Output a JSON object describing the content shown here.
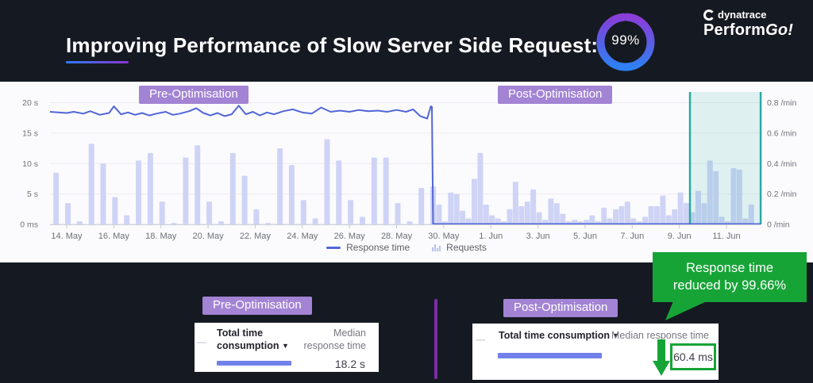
{
  "header": {
    "title": "Improving Performance of Slow Server Side Request:",
    "gauge_percent": "99%",
    "brand": {
      "company": "dynatrace",
      "event": "Perform",
      "event_suffix": "Go!"
    }
  },
  "chart": {
    "pre_label": "Pre-Optimisation",
    "post_label": "Post-Optimisation",
    "legend": [
      {
        "label": "Response time"
      },
      {
        "label": "Requests"
      }
    ]
  },
  "chart_data": {
    "type": "line+bar",
    "x_axis": {
      "tick_labels": [
        "14. May",
        "16. May",
        "18. May",
        "20. May",
        "22. May",
        "24. May",
        "26. May",
        "28. May",
        "30. May",
        "1. Jun",
        "3. Jun",
        "5. Jun",
        "7. Jun",
        "9. Jun",
        "11. Jun"
      ],
      "tick_step_days": 2,
      "domain_days": [
        -0.71,
        29.45
      ]
    },
    "y_left": {
      "tick_labels_bottom_up": [
        "0 ms",
        "5 s",
        "10 s",
        "15 s",
        "20 s"
      ],
      "tick_values_seconds": [
        0,
        5,
        10,
        15,
        20
      ],
      "range_seconds": [
        0,
        20
      ]
    },
    "y_right": {
      "tick_labels_bottom_up": [
        "0 /min",
        "0.2 /min",
        "0.4 /min",
        "0.6 /min",
        "0.8 /min"
      ],
      "range_per_min": [
        0,
        0.8
      ]
    },
    "grid": true,
    "legend_position": "bottom-center",
    "selection_region_days": [
      26.45,
      29.45
    ],
    "series": [
      {
        "name": "Response time",
        "type": "line",
        "color": "#5166d8",
        "points_day_seconds": [
          [
            -0.71,
            18.5
          ],
          [
            0,
            18.3
          ],
          [
            0.3,
            18.5
          ],
          [
            0.7,
            18.2
          ],
          [
            1,
            18.6
          ],
          [
            1.4,
            18.0
          ],
          [
            1.8,
            18.3
          ],
          [
            2,
            19.4
          ],
          [
            2.3,
            18.1
          ],
          [
            2.6,
            18.4
          ],
          [
            2.9,
            18.0
          ],
          [
            3.2,
            18.3
          ],
          [
            3.5,
            17.9
          ],
          [
            3.8,
            18.2
          ],
          [
            4.2,
            18.5
          ],
          [
            4.5,
            18.0
          ],
          [
            4.8,
            18.2
          ],
          [
            5.2,
            18.6
          ],
          [
            5.5,
            19.1
          ],
          [
            5.8,
            18.3
          ],
          [
            6.1,
            17.9
          ],
          [
            6.4,
            18.3
          ],
          [
            6.7,
            17.8
          ],
          [
            7,
            18.1
          ],
          [
            7.3,
            19.5
          ],
          [
            7.6,
            18.1
          ],
          [
            7.9,
            18.5
          ],
          [
            8.2,
            17.9
          ],
          [
            8.5,
            18.4
          ],
          [
            8.8,
            18.1
          ],
          [
            9.2,
            18.6
          ],
          [
            9.6,
            18.9
          ],
          [
            10,
            18.4
          ],
          [
            10.4,
            18.2
          ],
          [
            10.8,
            19.2
          ],
          [
            11.2,
            18.5
          ],
          [
            11.6,
            18.7
          ],
          [
            12,
            18.5
          ],
          [
            12.4,
            18.8
          ],
          [
            12.8,
            18.6
          ],
          [
            13.2,
            18.7
          ],
          [
            13.6,
            18.5
          ],
          [
            14,
            18.8
          ],
          [
            14.4,
            18.5
          ],
          [
            14.7,
            18.9
          ],
          [
            15,
            17.8
          ],
          [
            15.3,
            17.4
          ],
          [
            15.45,
            19.4
          ],
          [
            15.5,
            19.3
          ],
          [
            15.55,
            0.06
          ],
          [
            29.45,
            0.06
          ]
        ]
      },
      {
        "name": "Requests",
        "type": "bar",
        "color": "#cfd4f6",
        "segments": [
          {
            "start_day": -0.45,
            "step_days": 0.5,
            "values_per_min": [
              0.34,
              0.14,
              0.02,
              0.53,
              0.4,
              0.18,
              0.06,
              0.42,
              0.47,
              0.15,
              0.01,
              0.44,
              0.52,
              0.15,
              0.02,
              0.47,
              0.32,
              0.1,
              0.01,
              0.5,
              0.39,
              0.16,
              0.04,
              0.56,
              0.42,
              0.16,
              0.05,
              0.44,
              0.44,
              0.14,
              0.02,
              0.24
            ]
          },
          {
            "start_day": 15.55,
            "step_days": 0.25,
            "values_per_min": [
              0.25,
              0.13,
              0.02,
              0.21,
              0.2,
              0.09,
              0.04,
              0.3,
              0.47,
              0.13,
              0.06,
              0.04,
              0.02,
              0.1,
              0.28,
              0.12,
              0.15,
              0.23,
              0.08,
              0.03,
              0.17,
              0.14,
              0.07,
              0.02,
              0.03,
              0.02,
              0.03,
              0.06,
              0.02,
              0.11,
              0.04,
              0.1,
              0.12,
              0.15,
              0.04,
              0.02,
              0.05,
              0.12,
              0.12,
              0.19,
              0.06,
              0.1,
              0.21,
              0.14,
              0.08,
              0.22,
              0.14,
              0.42,
              0.35,
              0.05,
              0.02,
              0.37,
              0.36,
              0.04,
              0.13
            ]
          }
        ]
      }
    ]
  },
  "comparison": {
    "pre": {
      "badge": "Pre-Optimisation",
      "col_header_line1": "Total time",
      "col_header_line2": "consumption",
      "sort_icon": "▼",
      "value_header_line1": "Median",
      "value_header_line2": "response time",
      "value": "18.2 s"
    },
    "post": {
      "badge": "Post-Optimisation",
      "col_header": "Total time consumption",
      "sort_icon": "▼",
      "value_header": "Median response time",
      "value": "60.4 ms"
    },
    "callout": {
      "line1": "Response time",
      "line2": "reduced by 99.66%"
    }
  }
}
